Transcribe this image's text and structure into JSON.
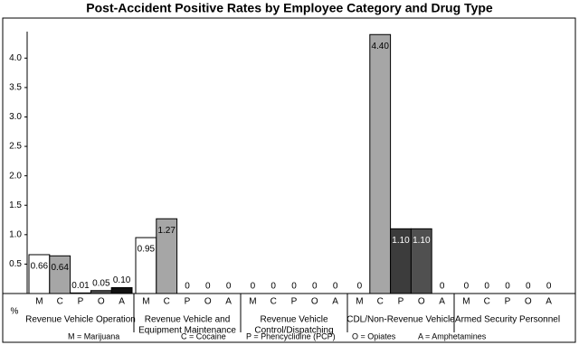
{
  "chart_data": {
    "type": "bar",
    "title": "Post-Accident Positive Rates by Employee Category and Drug Type",
    "y_label": "%",
    "categories": [
      [
        "Revenue Vehicle Operation"
      ],
      [
        "Revenue Vehicle and",
        "Equipment Maintenance"
      ],
      [
        "Revenue Vehicle",
        "Control/Dispatching"
      ],
      [
        "CDL/Non-Revenue Vehicle"
      ],
      [
        "Armed Security Personnel"
      ]
    ],
    "series": [
      {
        "name": "M",
        "legend": "M = Marijuana",
        "color": "#ffffff",
        "values": [
          0.66,
          0.95,
          0,
          0,
          0
        ],
        "value_labels": [
          "0.66",
          "0.95",
          "0",
          "0",
          "0"
        ]
      },
      {
        "name": "C",
        "legend": "C = Cocaine",
        "color": "#a6a6a6",
        "values": [
          0.64,
          1.27,
          0,
          4.4,
          0
        ],
        "value_labels": [
          "0.64",
          "1.27",
          "0",
          "4.40",
          "0"
        ]
      },
      {
        "name": "P",
        "legend": "P = Phencyclidine (PCP)",
        "color": "#3c3c3c",
        "values": [
          0.01,
          0,
          0,
          1.1,
          0
        ],
        "value_labels": [
          "0.01",
          "0",
          "0",
          "1.10",
          "0"
        ]
      },
      {
        "name": "O",
        "legend": "O = Opiates",
        "color": "#505050",
        "values": [
          0.05,
          0,
          0,
          1.1,
          0
        ],
        "value_labels": [
          "0.05",
          "0",
          "0",
          "1.10",
          "0"
        ]
      },
      {
        "name": "A",
        "legend": "A = Amphetamines",
        "color": "#111111",
        "values": [
          0.1,
          0,
          0,
          0,
          0
        ],
        "value_labels": [
          "0.10",
          "0",
          "0",
          "0",
          "0"
        ]
      }
    ],
    "ylim": [
      0,
      4.45
    ],
    "yticks": [
      0.5,
      {
        "value": 1,
        "label": "1.0"
      },
      1.5,
      {
        "value": 2,
        "label": "2.0"
      },
      2.5,
      {
        "value": 3,
        "label": "3.0"
      },
      3.5,
      {
        "value": 4,
        "label": "4.0"
      }
    ],
    "grid": false
  }
}
